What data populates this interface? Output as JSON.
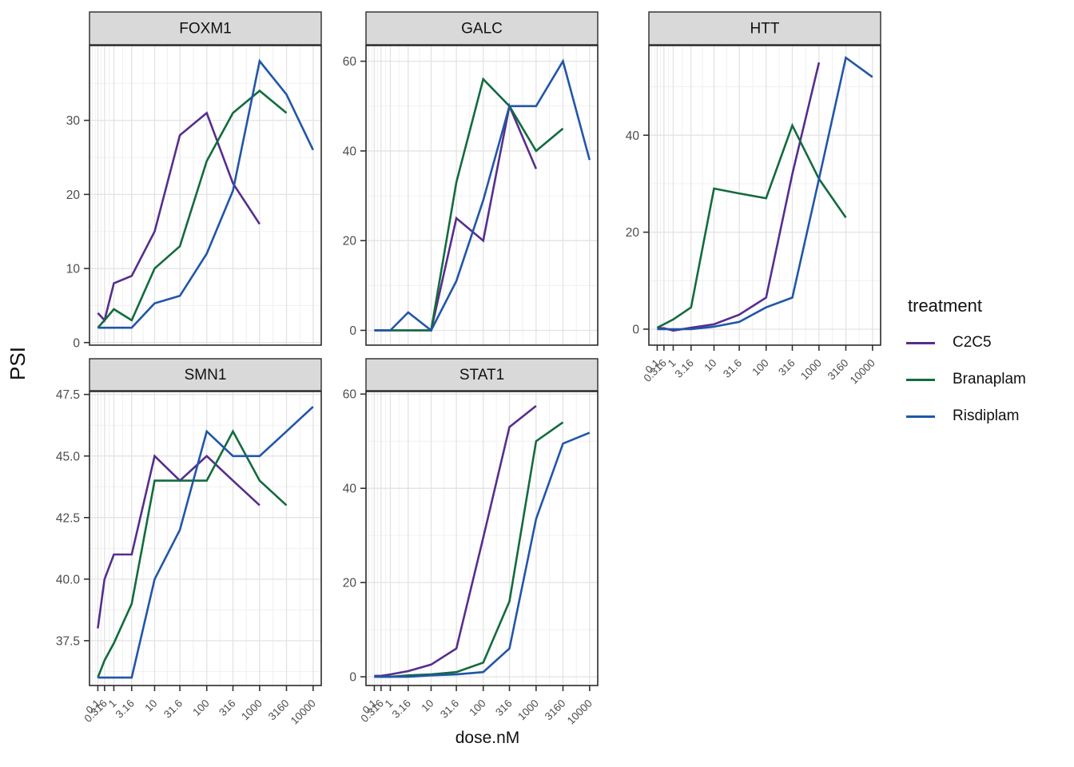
{
  "figure": {
    "y_axis_title": "PSI",
    "x_axis_title": "dose.nM",
    "legend_title": "treatment"
  },
  "chart_data": {
    "type": "line",
    "title": "",
    "xlabel": "dose.nM",
    "ylabel": "PSI",
    "x_scale": "pseudo-log (half-decade doses, compressed at low end)",
    "facet_layout": "2 rows x 3 cols; panels FOXM1, GALC, HTT on top row, SMN1, STAT1 on bottom row; free y scales",
    "grid": "major and minor gridlines on, white panel background, grey strip headers",
    "legend_position": "right-center",
    "legend_title": "treatment",
    "doses": [
      0.1,
      0.316,
      1,
      3.16,
      10,
      31.6,
      100,
      316,
      1000,
      3160,
      10000
    ],
    "x_tick_labels": [
      "0.1",
      "0.316",
      "1",
      "3.16",
      "10",
      "31.6",
      "100",
      "316",
      "1000",
      "3160",
      "10000"
    ],
    "treatments": [
      {
        "name": "C2C5",
        "color": "#552E8E"
      },
      {
        "name": "Branaplam",
        "color": "#136B3E"
      },
      {
        "name": "Risdiplam",
        "color": "#2156A8"
      }
    ],
    "panels": [
      {
        "gene": "FOXM1",
        "ylim": [
          -0.35,
          40.1
        ],
        "yticks": [
          0,
          10,
          20,
          30
        ],
        "ytick_labels": [
          "0",
          "10",
          "20",
          "30"
        ],
        "series": {
          "C2C5": [
            4,
            3,
            8,
            9,
            15,
            28,
            31,
            21.5,
            16
          ],
          "Branaplam": [
            2,
            3,
            4.5,
            3,
            10,
            13,
            24.5,
            31,
            34,
            31
          ],
          "Risdiplam": [
            2,
            2,
            2,
            2,
            5.3,
            6.3,
            12,
            20.5,
            38,
            33.5,
            26
          ]
        }
      },
      {
        "gene": "GALC",
        "ylim": [
          -3.3,
          63.5
        ],
        "yticks": [
          0,
          20,
          40,
          60
        ],
        "ytick_labels": [
          "0",
          "20",
          "40",
          "60"
        ],
        "series": {
          "C2C5": [
            0,
            0,
            0,
            0,
            0,
            25,
            20,
            50,
            36
          ],
          "Branaplam": [
            0,
            0,
            0,
            0,
            0,
            33,
            56,
            50,
            40,
            45
          ],
          "Risdiplam": [
            0,
            0,
            0,
            4,
            0,
            11,
            29,
            50,
            50,
            60,
            38
          ]
        }
      },
      {
        "gene": "HTT",
        "ylim": [
          -3.3,
          58.5
        ],
        "yticks": [
          0,
          20,
          40
        ],
        "ytick_labels": [
          "0",
          "20",
          "40"
        ],
        "series": {
          "C2C5": [
            0.2,
            0.2,
            -0.3,
            0.3,
            1,
            3,
            6.5,
            32,
            55
          ],
          "Branaplam": [
            0.3,
            1,
            2,
            4.5,
            29,
            28,
            27,
            42,
            31,
            23
          ],
          "Risdiplam": [
            0,
            0,
            0,
            0,
            0.5,
            1.5,
            4.5,
            6.5,
            31,
            56,
            52
          ]
        }
      },
      {
        "gene": "SMN1",
        "ylim": [
          35.68,
          47.62
        ],
        "yticks": [
          37.5,
          40.0,
          42.5,
          45.0,
          47.5
        ],
        "ytick_labels": [
          "37.5",
          "40.0",
          "42.5",
          "45.0",
          "47.5"
        ],
        "series": {
          "C2C5": [
            38,
            40,
            41,
            41,
            45,
            44,
            45,
            44,
            43
          ],
          "Branaplam": [
            36,
            36.7,
            37.4,
            39,
            44,
            44,
            44,
            46,
            44,
            43
          ],
          "Risdiplam": [
            36,
            36,
            36,
            36,
            40,
            42,
            46,
            45,
            45,
            46,
            47
          ]
        }
      },
      {
        "gene": "STAT1",
        "ylim": [
          -1.85,
          60.55
        ],
        "yticks": [
          0,
          20,
          40,
          60
        ],
        "ytick_labels": [
          "0",
          "20",
          "40",
          "60"
        ],
        "series": {
          "C2C5": [
            0.2,
            0.2,
            0.5,
            1.2,
            2.6,
            6,
            29.5,
            53,
            57.5
          ],
          "Branaplam": [
            0,
            0,
            0,
            0.3,
            0.5,
            1,
            3,
            16,
            50,
            54
          ],
          "Risdiplam": [
            0,
            0,
            0,
            0,
            0.3,
            0.5,
            1,
            6,
            33.5,
            49.5,
            51.8
          ]
        }
      }
    ]
  },
  "style_colors": {
    "strip_background": "#D9D9D9",
    "panel_border": "#2B2B2B",
    "grid_major": "#E3E3E3",
    "grid_minor": "#F0F0F0",
    "tick_text": "#4D4D4D",
    "title_text": "#111111"
  }
}
